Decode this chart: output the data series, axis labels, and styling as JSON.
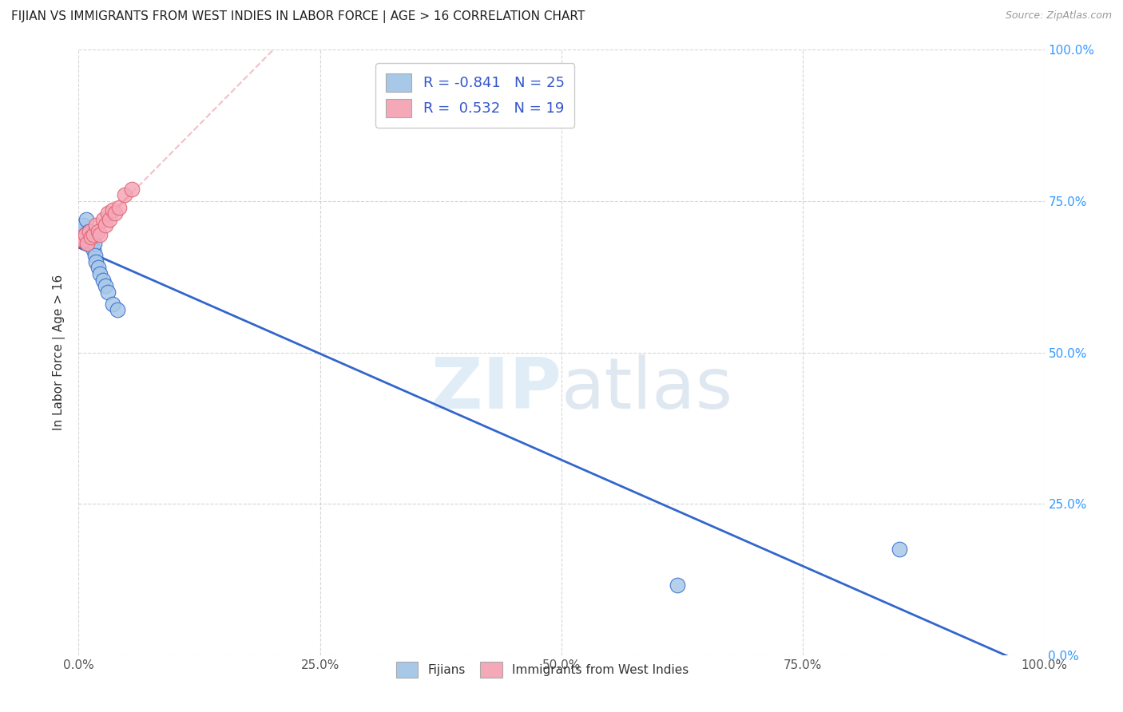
{
  "title": "FIJIAN VS IMMIGRANTS FROM WEST INDIES IN LABOR FORCE | AGE > 16 CORRELATION CHART",
  "source": "Source: ZipAtlas.com",
  "ylabel": "In Labor Force | Age > 16",
  "legend_label1": "Fijians",
  "legend_label2": "Immigrants from West Indies",
  "R1": -0.841,
  "N1": 25,
  "R2": 0.532,
  "N2": 19,
  "color_blue": "#a8c8e8",
  "color_pink": "#f4a8b8",
  "line_color_blue": "#3366cc",
  "line_color_pink": "#e06070",
  "line_color_dashed": "#f0b0b8",
  "watermark_zip": "ZIP",
  "watermark_atlas": "atlas",
  "fijian_x": [
    0.002,
    0.004,
    0.005,
    0.006,
    0.007,
    0.008,
    0.009,
    0.01,
    0.011,
    0.012,
    0.013,
    0.014,
    0.015,
    0.016,
    0.017,
    0.018,
    0.02,
    0.022,
    0.025,
    0.028,
    0.03,
    0.035,
    0.04,
    0.62,
    0.85
  ],
  "fijian_y": [
    0.7,
    0.695,
    0.71,
    0.69,
    0.695,
    0.72,
    0.685,
    0.7,
    0.69,
    0.68,
    0.695,
    0.685,
    0.67,
    0.68,
    0.66,
    0.65,
    0.64,
    0.63,
    0.62,
    0.61,
    0.6,
    0.58,
    0.57,
    0.115,
    0.175
  ],
  "wi_x": [
    0.003,
    0.005,
    0.007,
    0.009,
    0.011,
    0.013,
    0.015,
    0.018,
    0.02,
    0.022,
    0.025,
    0.028,
    0.03,
    0.032,
    0.035,
    0.038,
    0.042,
    0.048,
    0.055
  ],
  "wi_y": [
    0.69,
    0.685,
    0.695,
    0.68,
    0.7,
    0.69,
    0.695,
    0.71,
    0.7,
    0.695,
    0.72,
    0.71,
    0.73,
    0.72,
    0.735,
    0.73,
    0.74,
    0.76,
    0.77
  ],
  "xlim": [
    0.0,
    1.0
  ],
  "ylim": [
    0.0,
    1.0
  ],
  "xticks": [
    0.0,
    0.25,
    0.5,
    0.75,
    1.0
  ],
  "yticks": [
    0.0,
    0.25,
    0.5,
    0.75,
    1.0
  ],
  "xtick_labels": [
    "0.0%",
    "25.0%",
    "50.0%",
    "75.0%",
    "100.0%"
  ],
  "ytick_labels": [
    "0.0%",
    "25.0%",
    "50.0%",
    "75.0%",
    "100.0%"
  ]
}
